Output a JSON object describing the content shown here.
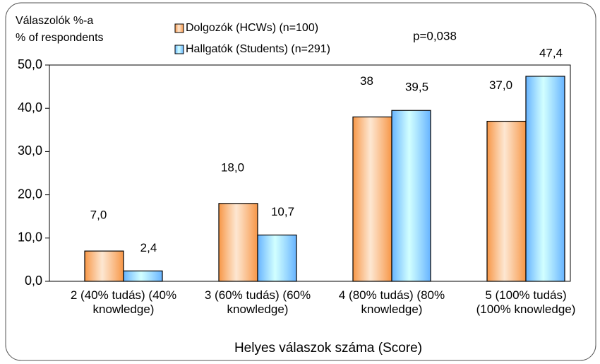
{
  "chart_data": {
    "type": "bar",
    "y_axis_label": "Válaszolók %-a\n% of respondents",
    "x_axis_label": "Helyes válaszok száma (Score)",
    "annotation": "p=0,038",
    "categories": [
      "2 (40% tudás) (40%\nknowledge)",
      "3 (60% tudás) (60%\nknowledge)",
      "4 (80% tudás) (80%\nknowledge)",
      "5 (100% tudás)\n(100% knowledge)"
    ],
    "series": [
      {
        "name": "Dolgozók (HCWs) (n=100)",
        "color": "#f79646",
        "values": [
          7.0,
          18.0,
          38,
          37.0
        ],
        "value_labels": [
          "7,0",
          "18,0",
          "38",
          "37,0"
        ]
      },
      {
        "name": "Hallgatók (Students) (n=291)",
        "color": "#66b3ff",
        "values": [
          2.4,
          10.7,
          39.5,
          47.4
        ],
        "value_labels": [
          "2,4",
          "10,7",
          "39,5",
          "47,4"
        ]
      }
    ],
    "ylim": [
      0,
      50
    ],
    "yticks": [
      {
        "value": 0,
        "label": "0,0"
      },
      {
        "value": 10,
        "label": "10,0"
      },
      {
        "value": 20,
        "label": "20,0"
      },
      {
        "value": 30,
        "label": "30,0"
      },
      {
        "value": 40,
        "label": "40,0"
      },
      {
        "value": 50,
        "label": "50,0"
      }
    ],
    "grid": false
  }
}
